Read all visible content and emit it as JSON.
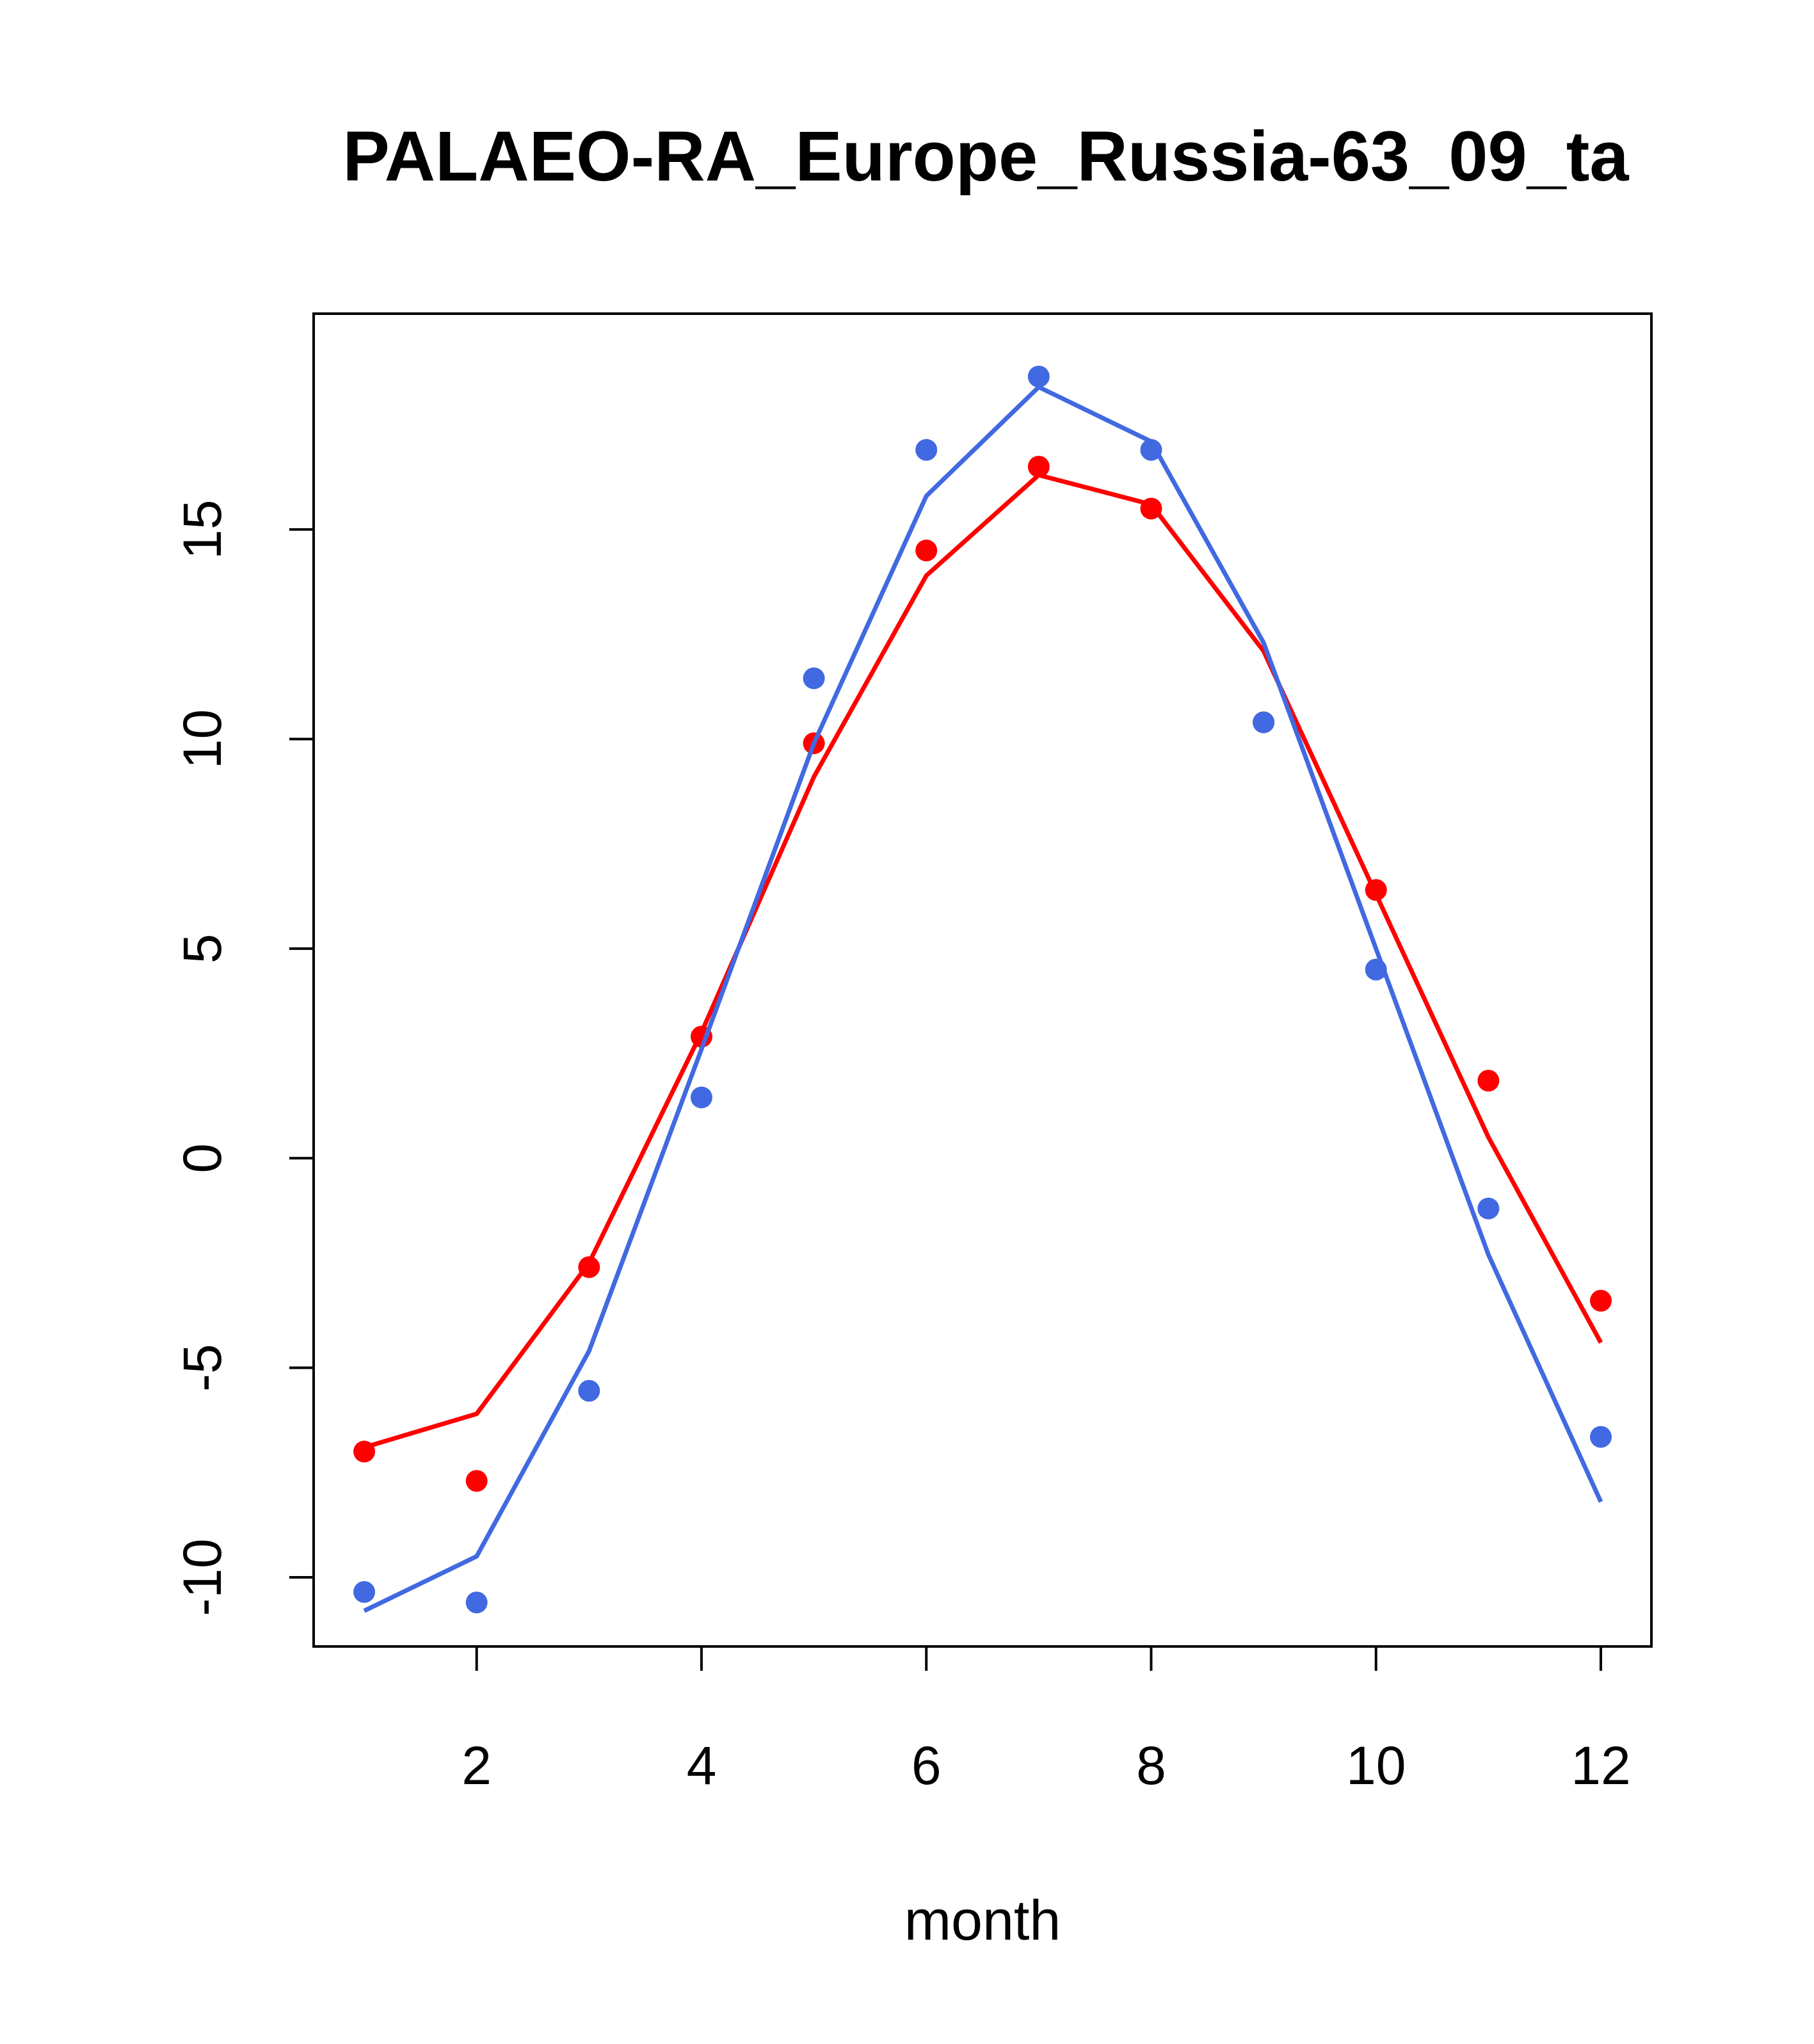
{
  "chart_data": {
    "type": "line",
    "title": "PALAEO-RA_Europe_Russia-63_09_ta",
    "xlabel": "month",
    "ylabel": "",
    "xlim": [
      0.55,
      12.45
    ],
    "ylim": [
      -11.65,
      20.15
    ],
    "x_ticks": [
      2,
      4,
      6,
      8,
      10,
      12
    ],
    "y_ticks": [
      -10,
      -5,
      0,
      5,
      10,
      15
    ],
    "grid": false,
    "legend": "none",
    "series": [
      {
        "color": "#ff0000",
        "line_x": [
          1,
          2,
          3,
          4,
          5,
          6,
          7,
          8,
          9,
          10,
          11,
          12
        ],
        "line_y": [
          -6.9,
          -6.1,
          -2.5,
          3.0,
          9.1,
          13.9,
          16.3,
          15.6,
          12.1,
          6.3,
          0.5,
          -4.4
        ],
        "points_x": [
          1,
          2,
          3,
          4,
          5,
          6,
          7,
          8,
          9,
          10,
          11,
          12
        ],
        "points_y": [
          -7.0,
          -7.7,
          -2.6,
          2.9,
          9.9,
          14.5,
          16.5,
          15.5,
          10.4,
          6.4,
          1.85,
          -3.4
        ]
      },
      {
        "color": "#4169e1",
        "line_x": [
          1,
          2,
          3,
          4,
          5,
          6,
          7,
          8,
          9,
          10,
          11,
          12
        ],
        "line_y": [
          -10.8,
          -9.5,
          -4.6,
          2.6,
          9.9,
          15.8,
          18.4,
          17.1,
          12.3,
          5.0,
          -2.3,
          -8.2
        ],
        "points_x": [
          1,
          2,
          3,
          4,
          5,
          6,
          7,
          8,
          9,
          10,
          11,
          12
        ],
        "points_y": [
          -10.35,
          -10.6,
          -5.55,
          1.45,
          11.45,
          16.9,
          18.65,
          16.9,
          10.4,
          4.5,
          -1.2,
          -6.65
        ]
      }
    ]
  }
}
